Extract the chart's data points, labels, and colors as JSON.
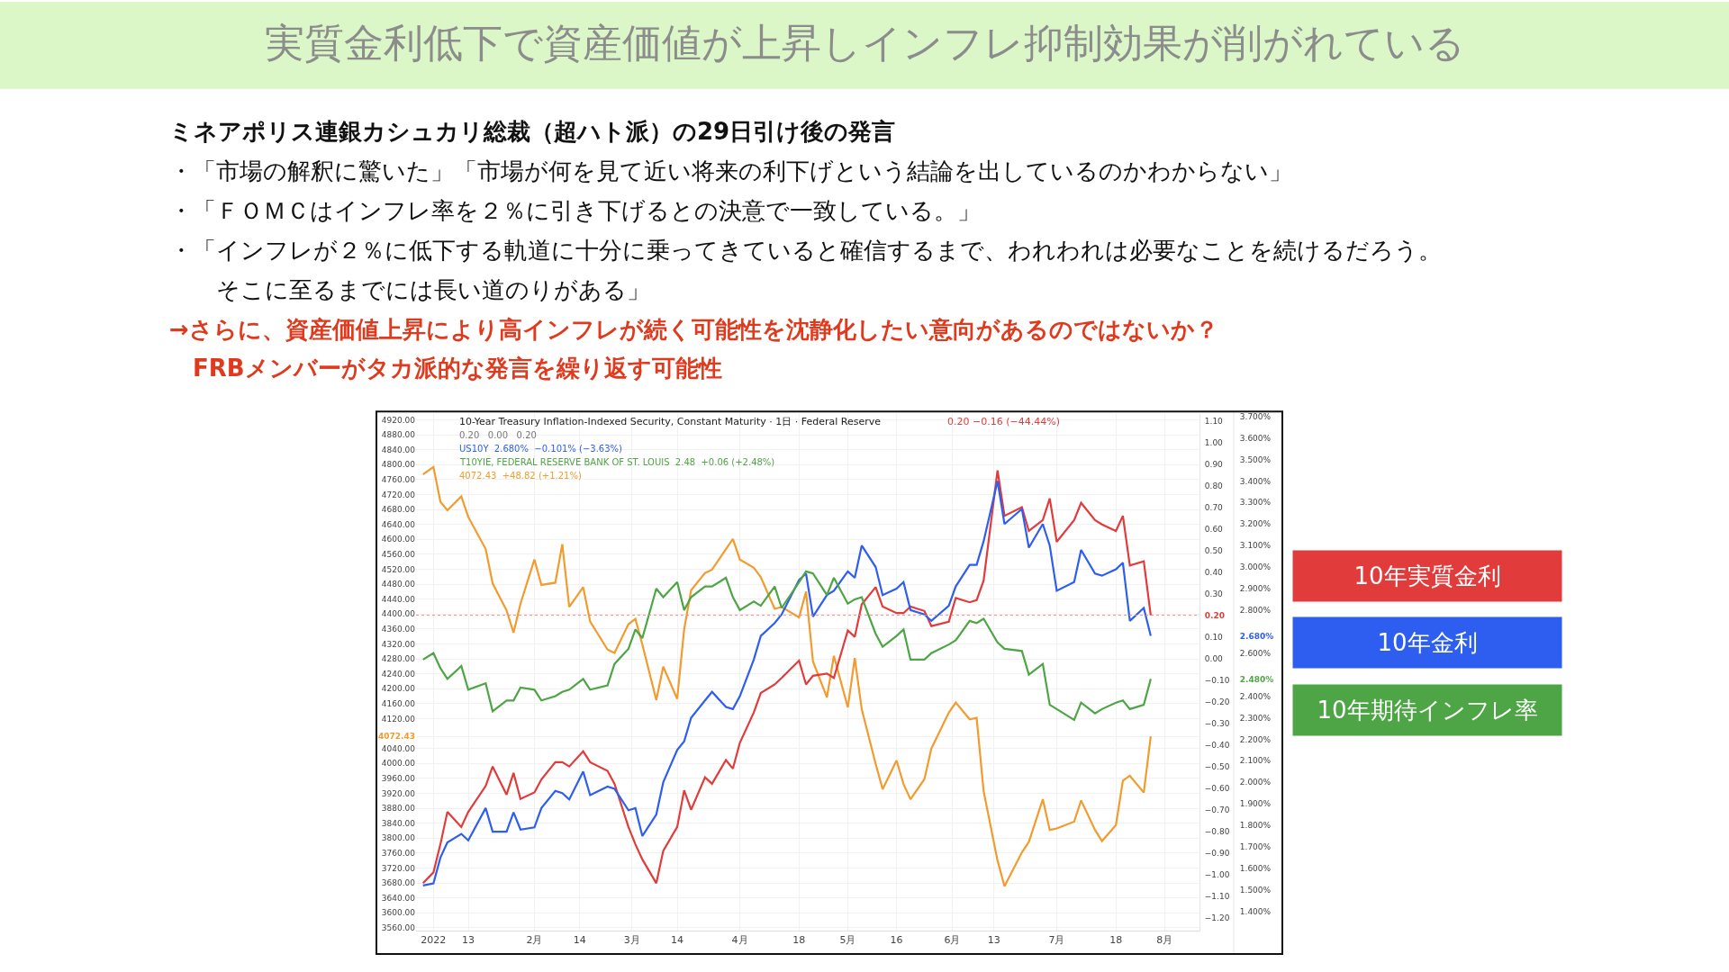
{
  "chart_data": {
    "type": "line",
    "title": "実質金利低下で資産価値が上昇しインフレ抑制効果が削がれている",
    "subtitle": "ミネアポリス連銀カシュカリ総裁（超ハト派）の29日引け後の発言",
    "annotations": [
      "・「市場の解釈に驚いた」「市場が何を見て近い将来の利下げという結論を出しているのかわからない」",
      "・「ＦＯＭＣはインフレ率を２％に引き下げるとの決意で一致している。」",
      "・「インフレが２％に低下する軌道に十分に乗ってきていると確信するまで、われわれは必要なことを続けるだろう。",
      "　　そこに至るまでには長い道のりがある」",
      "→さらに、資産価値上昇により高インフレが続く可能性を沈静化したい意向があるのではないか？",
      "　FRBメンバーがタカ派的な発言を繰り返す可能性",
      "10-Year Treasury Inflation-Indexed Security, Constant Maturity · 1日 · Federal Reserve",
      "0.20 −0.16 (−44.44%)",
      "0.20   0.00   0.20",
      "US10Y  2.680%  −0.101% (−3.63%)",
      "T10YIE, FEDERAL RESERVE BANK OF ST. LOUIS  2.48  +0.06 (+2.48%)",
      "4072.43  +48.82 (+1.21%)"
    ],
    "x": [
      "2021-12-31",
      "2022-01-03",
      "2022-01-05",
      "2022-01-07",
      "2022-01-11",
      "2022-01-13",
      "2022-01-18",
      "2022-01-20",
      "2022-01-24",
      "2022-01-26",
      "2022-01-28",
      "2022-02-01",
      "2022-02-03",
      "2022-02-07",
      "2022-02-09",
      "2022-02-11",
      "2022-02-15",
      "2022-02-17",
      "2022-02-22",
      "2022-02-24",
      "2022-02-28",
      "2022-03-02",
      "2022-03-04",
      "2022-03-08",
      "2022-03-10",
      "2022-03-14",
      "2022-03-16",
      "2022-03-18",
      "2022-03-22",
      "2022-03-24",
      "2022-03-28",
      "2022-03-30",
      "2022-04-01",
      "2022-04-05",
      "2022-04-07",
      "2022-04-11",
      "2022-04-13",
      "2022-04-18",
      "2022-04-20",
      "2022-04-22",
      "2022-04-26",
      "2022-04-28",
      "2022-05-02",
      "2022-05-04",
      "2022-05-06",
      "2022-05-10",
      "2022-05-12",
      "2022-05-16",
      "2022-05-18",
      "2022-05-20",
      "2022-05-24",
      "2022-05-26",
      "2022-05-31",
      "2022-06-02",
      "2022-06-06",
      "2022-06-08",
      "2022-06-10",
      "2022-06-14",
      "2022-06-16",
      "2022-06-21",
      "2022-06-23",
      "2022-06-27",
      "2022-06-29",
      "2022-07-01",
      "2022-07-06",
      "2022-07-08",
      "2022-07-12",
      "2022-07-14",
      "2022-07-18",
      "2022-07-20",
      "2022-07-22",
      "2022-07-26",
      "2022-07-28"
    ],
    "series": [
      {
        "name": "10年実質金利",
        "color": "#e23b3b",
        "axis": "y2",
        "values": [
          -1.04,
          -0.99,
          -0.86,
          -0.71,
          -0.78,
          -0.71,
          -0.59,
          -0.5,
          -0.63,
          -0.53,
          -0.65,
          -0.62,
          -0.56,
          -0.48,
          -0.48,
          -0.5,
          -0.43,
          -0.48,
          -0.52,
          -0.58,
          -0.78,
          -0.86,
          -0.93,
          -1.04,
          -0.89,
          -0.78,
          -0.61,
          -0.7,
          -0.55,
          -0.58,
          -0.47,
          -0.51,
          -0.39,
          -0.25,
          -0.16,
          -0.12,
          -0.09,
          -0.01,
          -0.12,
          -0.08,
          -0.07,
          -0.09,
          0.13,
          0.1,
          0.25,
          0.33,
          0.24,
          0.21,
          0.21,
          0.24,
          0.22,
          0.15,
          0.17,
          0.28,
          0.26,
          0.27,
          0.36,
          0.87,
          0.66,
          0.7,
          0.59,
          0.64,
          0.74,
          0.54,
          0.64,
          0.72,
          0.64,
          0.62,
          0.59,
          0.66,
          0.43,
          0.45,
          0.2
        ]
      },
      {
        "name": "10年金利",
        "color": "#2d5ef0",
        "axis": "y3",
        "values": [
          1.52,
          1.53,
          1.65,
          1.72,
          1.76,
          1.73,
          1.88,
          1.77,
          1.77,
          1.86,
          1.78,
          1.79,
          1.88,
          1.96,
          1.95,
          1.92,
          2.05,
          1.94,
          1.98,
          1.97,
          1.87,
          1.88,
          1.75,
          1.85,
          2.0,
          2.15,
          2.19,
          2.3,
          2.38,
          2.42,
          2.35,
          2.34,
          2.4,
          2.57,
          2.68,
          2.74,
          2.78,
          2.94,
          2.97,
          2.77,
          2.87,
          2.89,
          2.98,
          2.95,
          3.1,
          3.0,
          2.87,
          2.9,
          2.93,
          2.8,
          2.78,
          2.75,
          2.82,
          2.91,
          3.01,
          3.01,
          3.12,
          3.4,
          3.2,
          3.27,
          3.09,
          3.2,
          3.1,
          2.89,
          2.93,
          3.08,
          2.97,
          2.96,
          2.99,
          3.02,
          2.75,
          2.81,
          2.68
        ]
      },
      {
        "name": "10年期待インフレ率",
        "color": "#4ea545",
        "axis": "y3",
        "values": [
          2.57,
          2.6,
          2.53,
          2.48,
          2.54,
          2.43,
          2.46,
          2.33,
          2.38,
          2.38,
          2.44,
          2.43,
          2.38,
          2.4,
          2.42,
          2.43,
          2.48,
          2.43,
          2.45,
          2.55,
          2.62,
          2.71,
          2.67,
          2.9,
          2.86,
          2.93,
          2.8,
          2.86,
          2.91,
          2.91,
          2.95,
          2.86,
          2.8,
          2.84,
          2.82,
          2.91,
          2.81,
          2.93,
          2.98,
          2.97,
          2.87,
          2.95,
          2.83,
          2.85,
          2.86,
          2.69,
          2.63,
          2.68,
          2.71,
          2.57,
          2.57,
          2.6,
          2.64,
          2.66,
          2.75,
          2.74,
          2.76,
          2.65,
          2.62,
          2.61,
          2.5,
          2.55,
          2.36,
          2.34,
          2.29,
          2.37,
          2.32,
          2.34,
          2.37,
          2.38,
          2.34,
          2.36,
          2.48
        ]
      },
      {
        "color": "#f29b2f",
        "values": [
          4774,
          4794,
          4701,
          4678,
          4715,
          4660,
          4574,
          4482,
          4410,
          4350,
          4428,
          4546,
          4478,
          4484,
          4587,
          4419,
          4472,
          4380,
          4305,
          4296,
          4373,
          4387,
          4318,
          4170,
          4259,
          4173,
          4359,
          4464,
          4510,
          4519,
          4574,
          4601,
          4546,
          4524,
          4499,
          4414,
          4419,
          4391,
          4460,
          4273,
          4177,
          4288,
          4150,
          4282,
          4145,
          3999,
          3931,
          4008,
          3945,
          3904,
          3958,
          4040,
          4136,
          4163,
          4118,
          4122,
          3926,
          3740,
          3671,
          3762,
          3790,
          3904,
          3822,
          3826,
          3844,
          3901,
          3822,
          3792,
          3835,
          3954,
          3967,
          3922,
          4072.43
        ]
      }
    ],
    "xlim": [
      "2021-12-29",
      "2022-08-11"
    ],
    "xticks": [
      {
        "value": "2022-01-03",
        "label": "2022"
      },
      {
        "value": "2022-01-13",
        "label": "13"
      },
      {
        "value": "2022-02-01",
        "label": "2月"
      },
      {
        "value": "2022-02-14",
        "label": "14"
      },
      {
        "value": "2022-03-01",
        "label": "3月"
      },
      {
        "value": "2022-03-14",
        "label": "14"
      },
      {
        "value": "2022-04-01",
        "label": "4月"
      },
      {
        "value": "2022-04-18",
        "label": "18"
      },
      {
        "value": "2022-05-02",
        "label": "5月"
      },
      {
        "value": "2022-05-16",
        "label": "16"
      },
      {
        "value": "2022-06-01",
        "label": "6月"
      },
      {
        "value": "2022-06-13",
        "label": "13"
      },
      {
        "value": "2022-07-01",
        "label": "7月"
      },
      {
        "value": "2022-07-18",
        "label": "18"
      },
      {
        "value": "2022-08-01",
        "label": "8月"
      }
    ],
    "ylim": [
      3552,
      4935
    ],
    "yticks": [
      {
        "value": 3560,
        "label": "3560.00"
      },
      {
        "value": 3600,
        "label": "3600.00"
      },
      {
        "value": 3640,
        "label": "3640.00"
      },
      {
        "value": 3680,
        "label": "3680.00"
      },
      {
        "value": 3720,
        "label": "3720.00"
      },
      {
        "value": 3760,
        "label": "3760.00"
      },
      {
        "value": 3800,
        "label": "3800.00"
      },
      {
        "value": 3840,
        "label": "3840.00"
      },
      {
        "value": 3880,
        "label": "3880.00"
      },
      {
        "value": 3920,
        "label": "3920.00"
      },
      {
        "value": 3960,
        "label": "3960.00"
      },
      {
        "value": 4000,
        "label": "4000.00"
      },
      {
        "value": 4040,
        "label": "4040.00"
      },
      {
        "value": 4072.43,
        "label": "4072.43"
      },
      {
        "value": 4120,
        "label": "4120.00"
      },
      {
        "value": 4160,
        "label": "4160.00"
      },
      {
        "value": 4200,
        "label": "4200.00"
      },
      {
        "value": 4240,
        "label": "4240.00"
      },
      {
        "value": 4280,
        "label": "4280.00"
      },
      {
        "value": 4320,
        "label": "4320.00"
      },
      {
        "value": 4360,
        "label": "4360.00"
      },
      {
        "value": 4400,
        "label": "4400.00"
      },
      {
        "value": 4440,
        "label": "4440.00"
      },
      {
        "value": 4480,
        "label": "4480.00"
      },
      {
        "value": 4520,
        "label": "4520.00"
      },
      {
        "value": 4560,
        "label": "4560.00"
      },
      {
        "value": 4600,
        "label": "4600.00"
      },
      {
        "value": 4640,
        "label": "4640.00"
      },
      {
        "value": 4680,
        "label": "4680.00"
      },
      {
        "value": 4720,
        "label": "4720.00"
      },
      {
        "value": 4760,
        "label": "4760.00"
      },
      {
        "value": 4800,
        "label": "4800.00"
      },
      {
        "value": 4840,
        "label": "4840.00"
      },
      {
        "value": 4880,
        "label": "4880.00"
      },
      {
        "value": 4920,
        "label": "4920.00"
      }
    ],
    "y2lim": [
      -1.26,
      1.13
    ],
    "y2ticks": [
      {
        "value": -1.2,
        "label": "−1.20"
      },
      {
        "value": -1.1,
        "label": "−1.10"
      },
      {
        "value": -1.0,
        "label": "−1.00"
      },
      {
        "value": -0.9,
        "label": "−0.90"
      },
      {
        "value": -0.8,
        "label": "−0.80"
      },
      {
        "value": -0.7,
        "label": "−0.70"
      },
      {
        "value": -0.6,
        "label": "−0.60"
      },
      {
        "value": -0.5,
        "label": "−0.50"
      },
      {
        "value": -0.4,
        "label": "−0.40"
      },
      {
        "value": -0.3,
        "label": "−0.30"
      },
      {
        "value": -0.2,
        "label": "−0.20"
      },
      {
        "value": -0.1,
        "label": "−0.10"
      },
      {
        "value": 0,
        "label": "0.00"
      },
      {
        "value": 0.1,
        "label": "0.10"
      },
      {
        "value": 0.2,
        "label": "0.20"
      },
      {
        "value": 0.3,
        "label": "0.30"
      },
      {
        "value": 0.4,
        "label": "0.40"
      },
      {
        "value": 0.5,
        "label": "0.50"
      },
      {
        "value": 0.6,
        "label": "0.60"
      },
      {
        "value": 0.7,
        "label": "0.70"
      },
      {
        "value": 0.8,
        "label": "0.80"
      },
      {
        "value": 0.9,
        "label": "0.90"
      },
      {
        "value": 1.0,
        "label": "1.00"
      },
      {
        "value": 1.1,
        "label": "1.10"
      }
    ],
    "y3lim": [
      1.31,
      3.71
    ],
    "y3ticks": [
      {
        "value": 1.4,
        "label": "1.400%"
      },
      {
        "value": 1.5,
        "label": "1.500%"
      },
      {
        "value": 1.6,
        "label": "1.600%"
      },
      {
        "value": 1.7,
        "label": "1.700%"
      },
      {
        "value": 1.8,
        "label": "1.800%"
      },
      {
        "value": 1.9,
        "label": "1.900%"
      },
      {
        "value": 2.0,
        "label": "2.000%"
      },
      {
        "value": 2.1,
        "label": "2.100%"
      },
      {
        "value": 2.2,
        "label": "2.200%"
      },
      {
        "value": 2.3,
        "label": "2.300%"
      },
      {
        "value": 2.4,
        "label": "2.400%"
      },
      {
        "value": 2.48,
        "label": "2.480%"
      },
      {
        "value": 2.6,
        "label": "2.600%"
      },
      {
        "value": 2.68,
        "label": "2.680%"
      },
      {
        "value": 2.8,
        "label": "2.800%"
      },
      {
        "value": 2.9,
        "label": "2.900%"
      },
      {
        "value": 3.0,
        "label": "3.000%"
      },
      {
        "value": 3.1,
        "label": "3.100%"
      },
      {
        "value": 3.2,
        "label": "3.200%"
      },
      {
        "value": 3.3,
        "label": "3.300%"
      },
      {
        "value": 3.4,
        "label": "3.400%"
      },
      {
        "value": 3.5,
        "label": "3.500%"
      },
      {
        "value": 3.6,
        "label": "3.600%"
      },
      {
        "value": 3.7,
        "label": "3.700%"
      }
    ],
    "ref_lines": [
      {
        "axis": "y2",
        "value": 0.2,
        "color": "#f08c8c",
        "line_style": "dotted"
      }
    ],
    "grid": true,
    "legend": "right",
    "line_style": "solid"
  }
}
